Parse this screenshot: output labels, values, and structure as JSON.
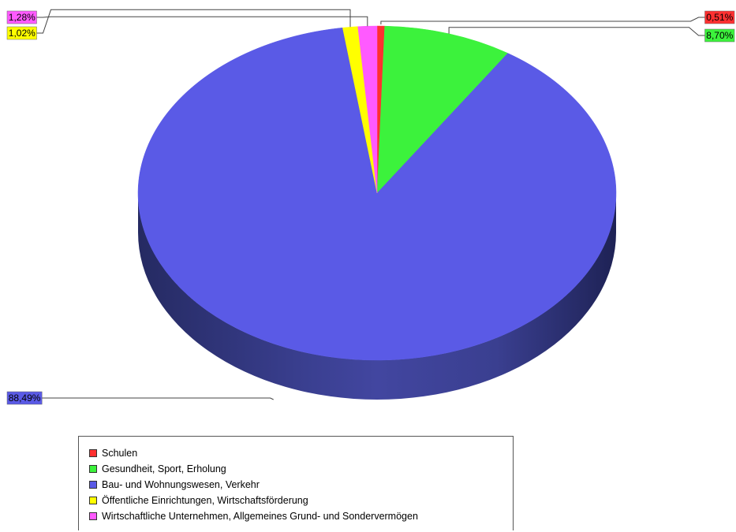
{
  "chart_data": {
    "type": "pie",
    "style": "3d",
    "legend_position": "bottom",
    "slices": [
      {
        "name": "Schulen",
        "value": 0.51,
        "label": "0,51%",
        "color": "#ff3030"
      },
      {
        "name": "Gesundheit, Sport, Erholung",
        "value": 8.7,
        "label": "8,70%",
        "color": "#3cf23c"
      },
      {
        "name": "Bau- und Wohnungswesen, Verkehr",
        "value": 88.49,
        "label": "88,49%",
        "color": "#5a5ae6"
      },
      {
        "name": "Öffentliche Einrichtungen, Wirtschaftsförderung",
        "value": 1.02,
        "label": "1,02%",
        "color": "#ffff00"
      },
      {
        "name": "Wirtschaftliche Unternehmen, Allgemeines Grund- und Sondervermögen",
        "value": 1.28,
        "label": "1,28%",
        "color": "#ff5aff"
      }
    ]
  }
}
